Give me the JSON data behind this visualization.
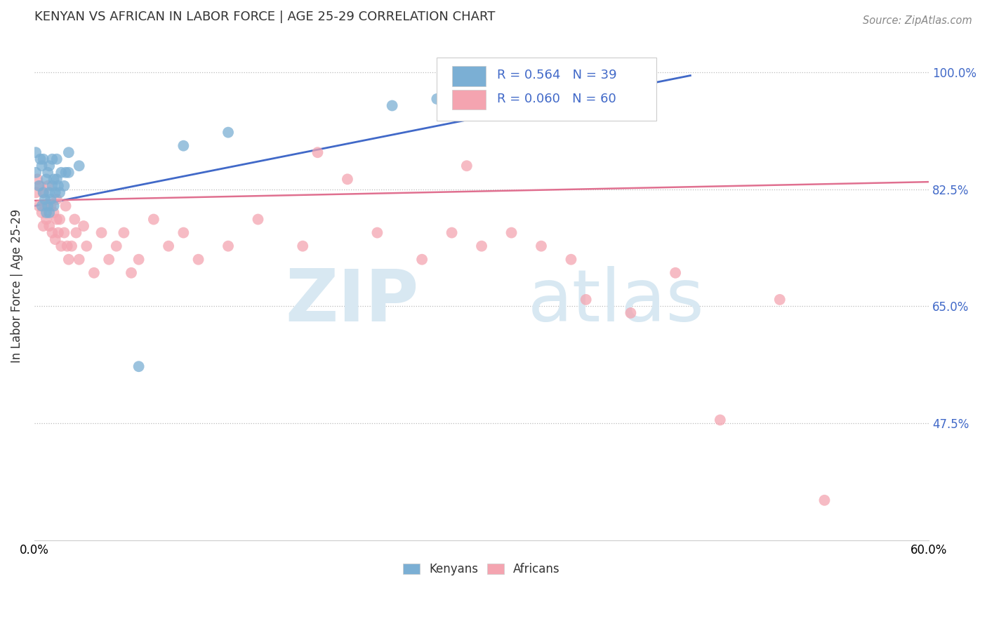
{
  "title": "KENYAN VS AFRICAN IN LABOR FORCE | AGE 25-29 CORRELATION CHART",
  "source_text": "Source: ZipAtlas.com",
  "ylabel": "In Labor Force | Age 25-29",
  "xmin": 0.0,
  "xmax": 0.6,
  "ymin": 0.3,
  "ymax": 1.06,
  "ytick_vals": [
    0.475,
    0.65,
    0.825,
    1.0
  ],
  "legend_r1": "R = 0.564",
  "legend_n1": "N = 39",
  "legend_r2": "R = 0.060",
  "legend_n2": "N = 60",
  "legend_labels": [
    "Kenyans",
    "Africans"
  ],
  "blue_color": "#7BAFD4",
  "pink_color": "#F4A4B0",
  "blue_line_color": "#4169C8",
  "pink_line_color": "#E07090",
  "watermark_color": "#D8E8F2",
  "blue_trend": [
    0.0,
    0.44,
    0.8,
    0.995
  ],
  "pink_trend": [
    0.0,
    0.6,
    0.808,
    0.836
  ],
  "kenyans_x": [
    0.001,
    0.001,
    0.003,
    0.004,
    0.005,
    0.005,
    0.006,
    0.006,
    0.007,
    0.008,
    0.008,
    0.009,
    0.009,
    0.01,
    0.01,
    0.01,
    0.011,
    0.012,
    0.012,
    0.013,
    0.013,
    0.014,
    0.015,
    0.015,
    0.016,
    0.017,
    0.018,
    0.02,
    0.021,
    0.023,
    0.023,
    0.03,
    0.07,
    0.1,
    0.13,
    0.24,
    0.27,
    0.38,
    0.4
  ],
  "kenyans_y": [
    0.85,
    0.88,
    0.83,
    0.87,
    0.8,
    0.86,
    0.82,
    0.87,
    0.81,
    0.79,
    0.84,
    0.8,
    0.85,
    0.79,
    0.82,
    0.86,
    0.81,
    0.83,
    0.87,
    0.8,
    0.84,
    0.82,
    0.84,
    0.87,
    0.83,
    0.82,
    0.85,
    0.83,
    0.85,
    0.85,
    0.88,
    0.86,
    0.56,
    0.89,
    0.91,
    0.95,
    0.96,
    0.985,
    0.99
  ],
  "africans_x": [
    0.001,
    0.002,
    0.003,
    0.004,
    0.005,
    0.006,
    0.006,
    0.007,
    0.008,
    0.009,
    0.01,
    0.011,
    0.012,
    0.013,
    0.014,
    0.015,
    0.015,
    0.016,
    0.017,
    0.018,
    0.02,
    0.021,
    0.022,
    0.023,
    0.025,
    0.027,
    0.028,
    0.03,
    0.033,
    0.035,
    0.04,
    0.045,
    0.05,
    0.055,
    0.06,
    0.065,
    0.07,
    0.08,
    0.09,
    0.1,
    0.11,
    0.13,
    0.15,
    0.18,
    0.19,
    0.21,
    0.23,
    0.26,
    0.28,
    0.29,
    0.3,
    0.32,
    0.34,
    0.36,
    0.37,
    0.4,
    0.43,
    0.46,
    0.5,
    0.53
  ],
  "africans_y": [
    0.82,
    0.84,
    0.8,
    0.83,
    0.79,
    0.77,
    0.82,
    0.8,
    0.78,
    0.83,
    0.77,
    0.8,
    0.76,
    0.79,
    0.75,
    0.78,
    0.81,
    0.76,
    0.78,
    0.74,
    0.76,
    0.8,
    0.74,
    0.72,
    0.74,
    0.78,
    0.76,
    0.72,
    0.77,
    0.74,
    0.7,
    0.76,
    0.72,
    0.74,
    0.76,
    0.7,
    0.72,
    0.78,
    0.74,
    0.76,
    0.72,
    0.74,
    0.78,
    0.74,
    0.88,
    0.84,
    0.76,
    0.72,
    0.76,
    0.86,
    0.74,
    0.76,
    0.74,
    0.72,
    0.66,
    0.64,
    0.7,
    0.48,
    0.66,
    0.36
  ]
}
